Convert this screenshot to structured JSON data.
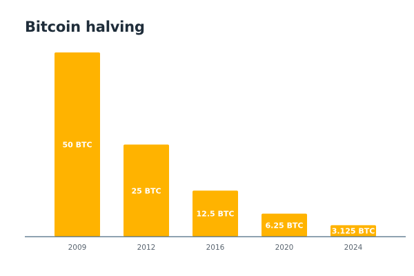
{
  "chart_data": {
    "type": "bar",
    "title": "Bitcoin halving",
    "categories": [
      "2009",
      "2012",
      "2016",
      "2020",
      "2024"
    ],
    "values": [
      50,
      25,
      12.5,
      6.25,
      3.125
    ],
    "data_labels": [
      "50 BTC",
      "25 BTC",
      "12.5 BTC",
      "6.25 BTC",
      "3.125 BTC"
    ],
    "unit": "BTC",
    "ylim": [
      0,
      50
    ],
    "grid": false,
    "legend": "none",
    "bar_color": "#FFB300",
    "axis_color": "#4a6a80"
  }
}
